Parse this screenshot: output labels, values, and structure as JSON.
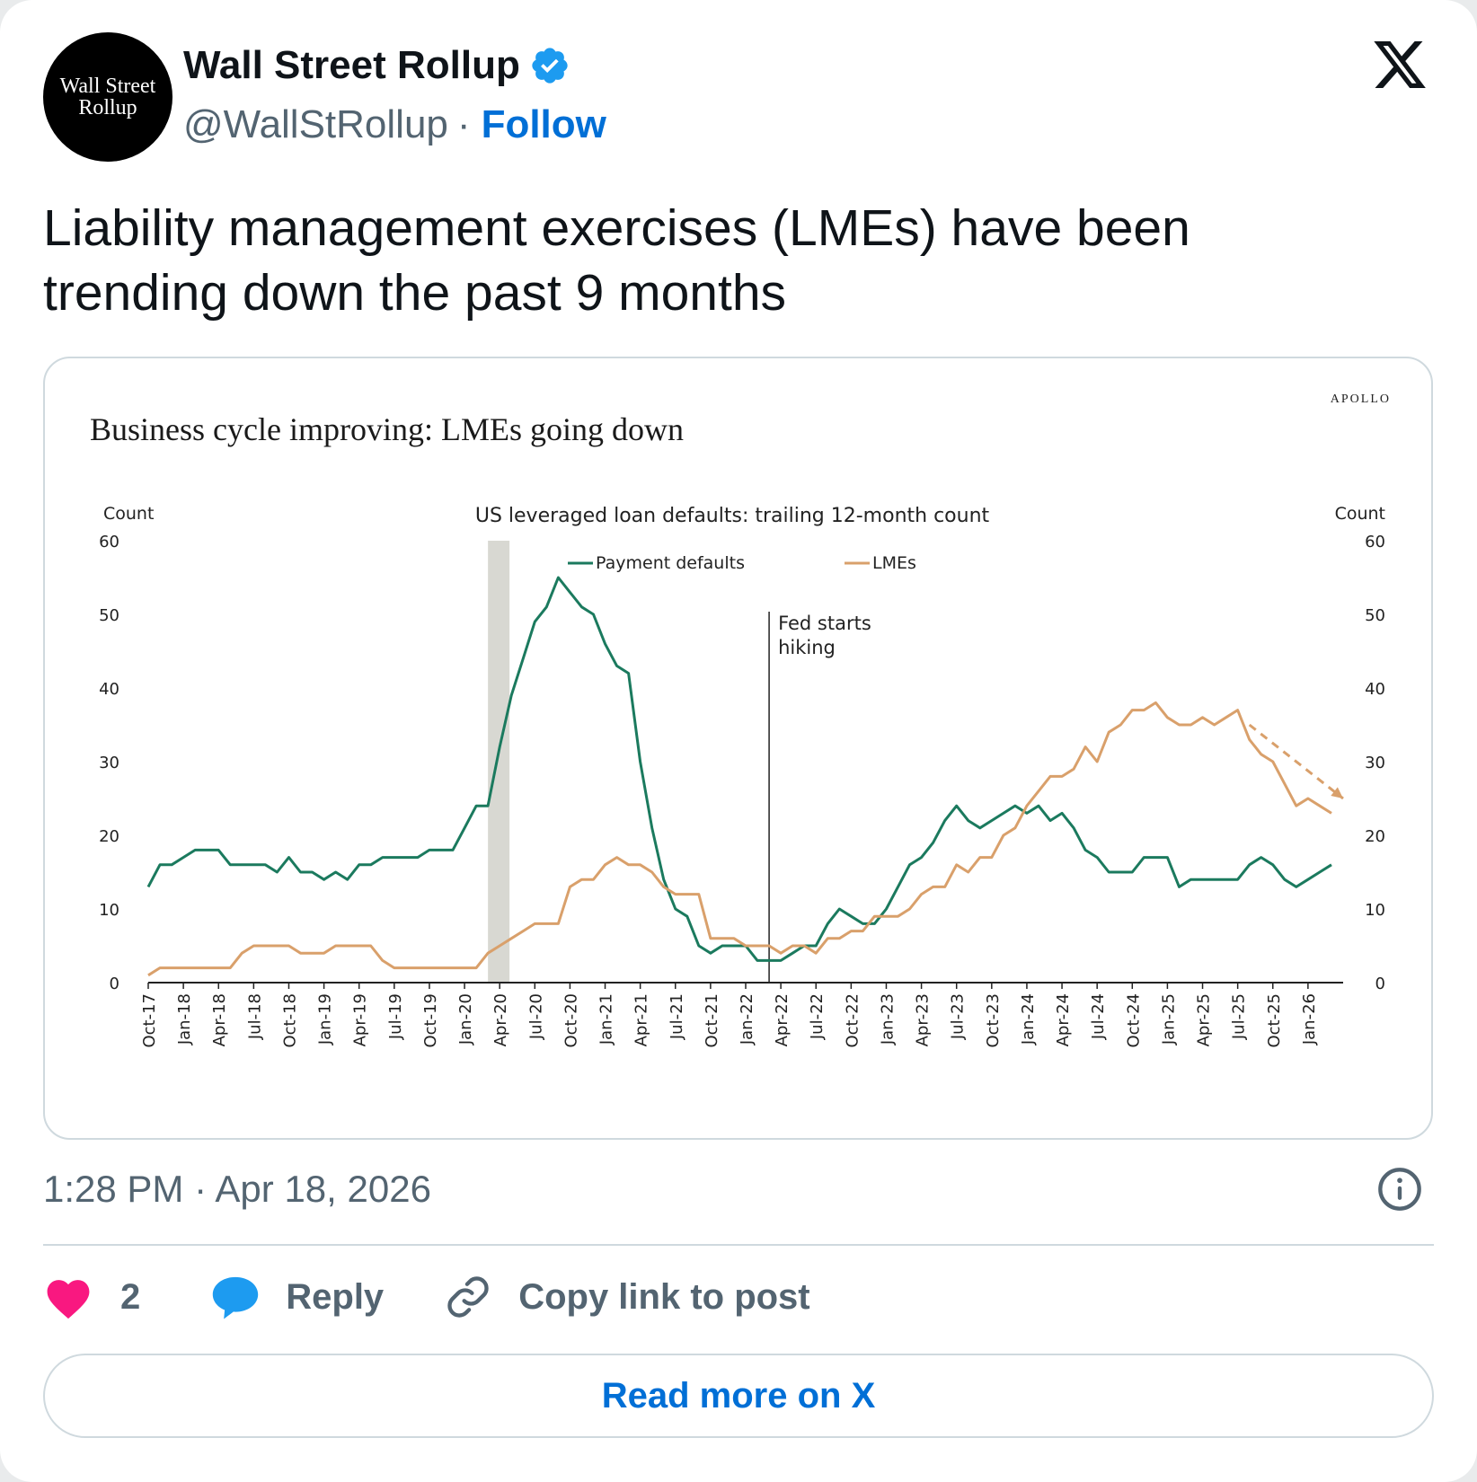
{
  "author": {
    "avatar_line1": "Wall Street",
    "avatar_line2": "Rollup",
    "name": "Wall Street Rollup",
    "handle": "@WallStRollup",
    "separator": "·",
    "follow_label": "Follow"
  },
  "tweet": {
    "text_line1": "Liability management exercises (LMEs) have been",
    "text_line2": "trending down the past 9 months",
    "timestamp": "1:28 PM · Apr 18, 2026"
  },
  "actions": {
    "like_count": "2",
    "reply_label": "Reply",
    "copy_label": "Copy link to post"
  },
  "read_more_label": "Read more on X",
  "colors": {
    "payment_defaults": "#1b7a5e",
    "lmes": "#d9a06b",
    "recession_band": "#d8d8d2",
    "like": "#f91880",
    "reply": "#1d9bf0",
    "link": "#006fd6"
  },
  "chart_data": {
    "type": "line",
    "brand": "APOLLO",
    "title": "Business cycle improving: LMEs going down",
    "subtitle": "US leveraged loan defaults: trailing 12-month count",
    "ylabel_left": "Count",
    "ylabel_right": "Count",
    "ylim": [
      0,
      60
    ],
    "yticks": [
      0,
      10,
      20,
      30,
      40,
      50,
      60
    ],
    "legend": {
      "placement": "top-center",
      "entries": [
        "Payment defaults",
        "LMEs"
      ]
    },
    "x_tick_labels": [
      "Oct-17",
      "Jan-18",
      "Apr-18",
      "Jul-18",
      "Oct-18",
      "Jan-19",
      "Apr-19",
      "Jul-19",
      "Oct-19",
      "Jan-20",
      "Apr-20",
      "Jul-20",
      "Oct-20",
      "Jan-21",
      "Apr-21",
      "Jul-21",
      "Oct-21",
      "Jan-22",
      "Apr-22",
      "Jul-22",
      "Oct-22",
      "Jan-23",
      "Apr-23",
      "Jul-23",
      "Oct-23",
      "Jan-24",
      "Apr-24",
      "Jul-24",
      "Oct-24",
      "Jan-25",
      "Apr-25",
      "Jul-25",
      "Oct-25",
      "Jan-26"
    ],
    "x_start": "Oct-17",
    "x_end": "Apr-26",
    "shaded_period": {
      "start": "Mar-20",
      "end": "Apr-20"
    },
    "annotation": {
      "text_line1": "Fed starts",
      "text_line2": "hiking",
      "date": "Mar-22"
    },
    "trend_arrow": {
      "series": "LMEs",
      "from": {
        "date": "Aug-25",
        "value": 35
      },
      "to": {
        "date": "Apr-26",
        "value": 25
      }
    },
    "series": [
      {
        "name": "Payment defaults",
        "points": [
          [
            "Oct-17",
            13
          ],
          [
            "Nov-17",
            16
          ],
          [
            "Dec-17",
            16
          ],
          [
            "Jan-18",
            17
          ],
          [
            "Feb-18",
            18
          ],
          [
            "Mar-18",
            18
          ],
          [
            "Apr-18",
            18
          ],
          [
            "May-18",
            16
          ],
          [
            "Jun-18",
            16
          ],
          [
            "Jul-18",
            16
          ],
          [
            "Aug-18",
            16
          ],
          [
            "Sep-18",
            15
          ],
          [
            "Oct-18",
            17
          ],
          [
            "Nov-18",
            15
          ],
          [
            "Dec-18",
            15
          ],
          [
            "Jan-19",
            14
          ],
          [
            "Feb-19",
            15
          ],
          [
            "Mar-19",
            14
          ],
          [
            "Apr-19",
            16
          ],
          [
            "May-19",
            16
          ],
          [
            "Jun-19",
            17
          ],
          [
            "Jul-19",
            17
          ],
          [
            "Aug-19",
            17
          ],
          [
            "Sep-19",
            17
          ],
          [
            "Oct-19",
            18
          ],
          [
            "Nov-19",
            18
          ],
          [
            "Dec-19",
            18
          ],
          [
            "Jan-20",
            21
          ],
          [
            "Feb-20",
            24
          ],
          [
            "Mar-20",
            24
          ],
          [
            "Apr-20",
            32
          ],
          [
            "May-20",
            39
          ],
          [
            "Jun-20",
            44
          ],
          [
            "Jul-20",
            49
          ],
          [
            "Aug-20",
            51
          ],
          [
            "Sep-20",
            55
          ],
          [
            "Oct-20",
            53
          ],
          [
            "Nov-20",
            51
          ],
          [
            "Dec-20",
            50
          ],
          [
            "Jan-21",
            46
          ],
          [
            "Feb-21",
            43
          ],
          [
            "Mar-21",
            42
          ],
          [
            "Apr-21",
            30
          ],
          [
            "May-21",
            21
          ],
          [
            "Jun-21",
            14
          ],
          [
            "Jul-21",
            10
          ],
          [
            "Aug-21",
            9
          ],
          [
            "Sep-21",
            5
          ],
          [
            "Oct-21",
            4
          ],
          [
            "Nov-21",
            5
          ],
          [
            "Dec-21",
            5
          ],
          [
            "Jan-22",
            5
          ],
          [
            "Feb-22",
            3
          ],
          [
            "Mar-22",
            3
          ],
          [
            "Apr-22",
            3
          ],
          [
            "May-22",
            4
          ],
          [
            "Jun-22",
            5
          ],
          [
            "Jul-22",
            5
          ],
          [
            "Aug-22",
            8
          ],
          [
            "Sep-22",
            10
          ],
          [
            "Oct-22",
            9
          ],
          [
            "Nov-22",
            8
          ],
          [
            "Dec-22",
            8
          ],
          [
            "Jan-23",
            10
          ],
          [
            "Feb-23",
            13
          ],
          [
            "Mar-23",
            16
          ],
          [
            "Apr-23",
            17
          ],
          [
            "May-23",
            19
          ],
          [
            "Jun-23",
            22
          ],
          [
            "Jul-23",
            24
          ],
          [
            "Aug-23",
            22
          ],
          [
            "Sep-23",
            21
          ],
          [
            "Oct-23",
            22
          ],
          [
            "Nov-23",
            23
          ],
          [
            "Dec-23",
            24
          ],
          [
            "Jan-24",
            23
          ],
          [
            "Feb-24",
            24
          ],
          [
            "Mar-24",
            22
          ],
          [
            "Apr-24",
            23
          ],
          [
            "May-24",
            21
          ],
          [
            "Jun-24",
            18
          ],
          [
            "Jul-24",
            17
          ],
          [
            "Aug-24",
            15
          ],
          [
            "Sep-24",
            15
          ],
          [
            "Oct-24",
            15
          ],
          [
            "Nov-24",
            17
          ],
          [
            "Dec-24",
            17
          ],
          [
            "Jan-25",
            17
          ],
          [
            "Feb-25",
            13
          ],
          [
            "Mar-25",
            14
          ],
          [
            "Apr-25",
            14
          ],
          [
            "May-25",
            14
          ],
          [
            "Jun-25",
            14
          ],
          [
            "Jul-25",
            14
          ],
          [
            "Aug-25",
            16
          ],
          [
            "Sep-25",
            17
          ],
          [
            "Oct-25",
            16
          ],
          [
            "Nov-25",
            14
          ],
          [
            "Dec-25",
            13
          ],
          [
            "Jan-26",
            14
          ],
          [
            "Feb-26",
            15
          ],
          [
            "Mar-26",
            16
          ]
        ]
      },
      {
        "name": "LMEs",
        "points": [
          [
            "Oct-17",
            1
          ],
          [
            "Nov-17",
            2
          ],
          [
            "Dec-17",
            2
          ],
          [
            "Jan-18",
            2
          ],
          [
            "Feb-18",
            2
          ],
          [
            "Mar-18",
            2
          ],
          [
            "Apr-18",
            2
          ],
          [
            "May-18",
            2
          ],
          [
            "Jun-18",
            4
          ],
          [
            "Jul-18",
            5
          ],
          [
            "Aug-18",
            5
          ],
          [
            "Sep-18",
            5
          ],
          [
            "Oct-18",
            5
          ],
          [
            "Nov-18",
            4
          ],
          [
            "Dec-18",
            4
          ],
          [
            "Jan-19",
            4
          ],
          [
            "Feb-19",
            5
          ],
          [
            "Mar-19",
            5
          ],
          [
            "Apr-19",
            5
          ],
          [
            "May-19",
            5
          ],
          [
            "Jun-19",
            3
          ],
          [
            "Jul-19",
            2
          ],
          [
            "Aug-19",
            2
          ],
          [
            "Sep-19",
            2
          ],
          [
            "Oct-19",
            2
          ],
          [
            "Nov-19",
            2
          ],
          [
            "Dec-19",
            2
          ],
          [
            "Jan-20",
            2
          ],
          [
            "Feb-20",
            2
          ],
          [
            "Mar-20",
            4
          ],
          [
            "Apr-20",
            5
          ],
          [
            "May-20",
            6
          ],
          [
            "Jun-20",
            7
          ],
          [
            "Jul-20",
            8
          ],
          [
            "Aug-20",
            8
          ],
          [
            "Sep-20",
            8
          ],
          [
            "Oct-20",
            13
          ],
          [
            "Nov-20",
            14
          ],
          [
            "Dec-20",
            14
          ],
          [
            "Jan-21",
            16
          ],
          [
            "Feb-21",
            17
          ],
          [
            "Mar-21",
            16
          ],
          [
            "Apr-21",
            16
          ],
          [
            "May-21",
            15
          ],
          [
            "Jun-21",
            13
          ],
          [
            "Jul-21",
            12
          ],
          [
            "Aug-21",
            12
          ],
          [
            "Sep-21",
            12
          ],
          [
            "Oct-21",
            6
          ],
          [
            "Nov-21",
            6
          ],
          [
            "Dec-21",
            6
          ],
          [
            "Jan-22",
            5
          ],
          [
            "Feb-22",
            5
          ],
          [
            "Mar-22",
            5
          ],
          [
            "Apr-22",
            4
          ],
          [
            "May-22",
            5
          ],
          [
            "Jun-22",
            5
          ],
          [
            "Jul-22",
            4
          ],
          [
            "Aug-22",
            6
          ],
          [
            "Sep-22",
            6
          ],
          [
            "Oct-22",
            7
          ],
          [
            "Nov-22",
            7
          ],
          [
            "Dec-22",
            9
          ],
          [
            "Jan-23",
            9
          ],
          [
            "Feb-23",
            9
          ],
          [
            "Mar-23",
            10
          ],
          [
            "Apr-23",
            12
          ],
          [
            "May-23",
            13
          ],
          [
            "Jun-23",
            13
          ],
          [
            "Jul-23",
            16
          ],
          [
            "Aug-23",
            15
          ],
          [
            "Sep-23",
            17
          ],
          [
            "Oct-23",
            17
          ],
          [
            "Nov-23",
            20
          ],
          [
            "Dec-23",
            21
          ],
          [
            "Jan-24",
            24
          ],
          [
            "Feb-24",
            26
          ],
          [
            "Mar-24",
            28
          ],
          [
            "Apr-24",
            28
          ],
          [
            "May-24",
            29
          ],
          [
            "Jun-24",
            32
          ],
          [
            "Jul-24",
            30
          ],
          [
            "Aug-24",
            34
          ],
          [
            "Sep-24",
            35
          ],
          [
            "Oct-24",
            37
          ],
          [
            "Nov-24",
            37
          ],
          [
            "Dec-24",
            38
          ],
          [
            "Jan-25",
            36
          ],
          [
            "Feb-25",
            35
          ],
          [
            "Mar-25",
            35
          ],
          [
            "Apr-25",
            36
          ],
          [
            "May-25",
            35
          ],
          [
            "Jun-25",
            36
          ],
          [
            "Jul-25",
            37
          ],
          [
            "Aug-25",
            33
          ],
          [
            "Sep-25",
            31
          ],
          [
            "Oct-25",
            30
          ],
          [
            "Nov-25",
            27
          ],
          [
            "Dec-25",
            24
          ],
          [
            "Jan-26",
            25
          ],
          [
            "Feb-26",
            24
          ],
          [
            "Mar-26",
            23
          ]
        ]
      }
    ]
  }
}
